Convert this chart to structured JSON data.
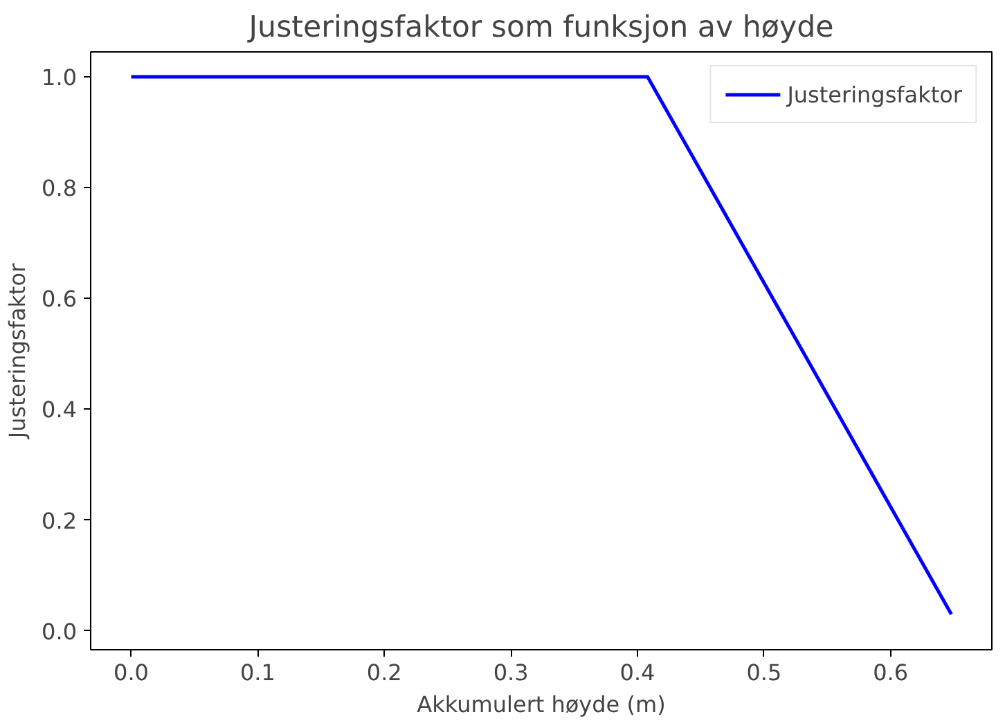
{
  "chart_data": {
    "type": "line",
    "title": "Justeringsfaktor som funksjon av høyde",
    "xlabel": "Akkumulert høyde (m)",
    "ylabel": "Justeringsfaktor",
    "x": [
      0.0,
      0.408,
      0.648
    ],
    "series": [
      {
        "name": "Justeringsfaktor",
        "color": "#0000ff",
        "values": [
          1.0,
          1.0,
          0.03
        ]
      }
    ],
    "xlim": [
      -0.032,
      0.68
    ],
    "ylim": [
      -0.034,
      1.045
    ],
    "xticks": [
      {
        "value": 0.0,
        "label": "0.0"
      },
      {
        "value": 0.1,
        "label": "0.1"
      },
      {
        "value": 0.2,
        "label": "0.2"
      },
      {
        "value": 0.3,
        "label": "0.3"
      },
      {
        "value": 0.4,
        "label": "0.4"
      },
      {
        "value": 0.5,
        "label": "0.5"
      },
      {
        "value": 0.6,
        "label": "0.6"
      }
    ],
    "yticks": [
      {
        "value": 0.0,
        "label": "0.0"
      },
      {
        "value": 0.2,
        "label": "0.2"
      },
      {
        "value": 0.4,
        "label": "0.4"
      },
      {
        "value": 0.6,
        "label": "0.6"
      },
      {
        "value": 0.8,
        "label": "0.8"
      },
      {
        "value": 1.0,
        "label": "1.0"
      }
    ],
    "legend": "top right",
    "grid": false,
    "marker": "none",
    "line_style": "solid"
  }
}
